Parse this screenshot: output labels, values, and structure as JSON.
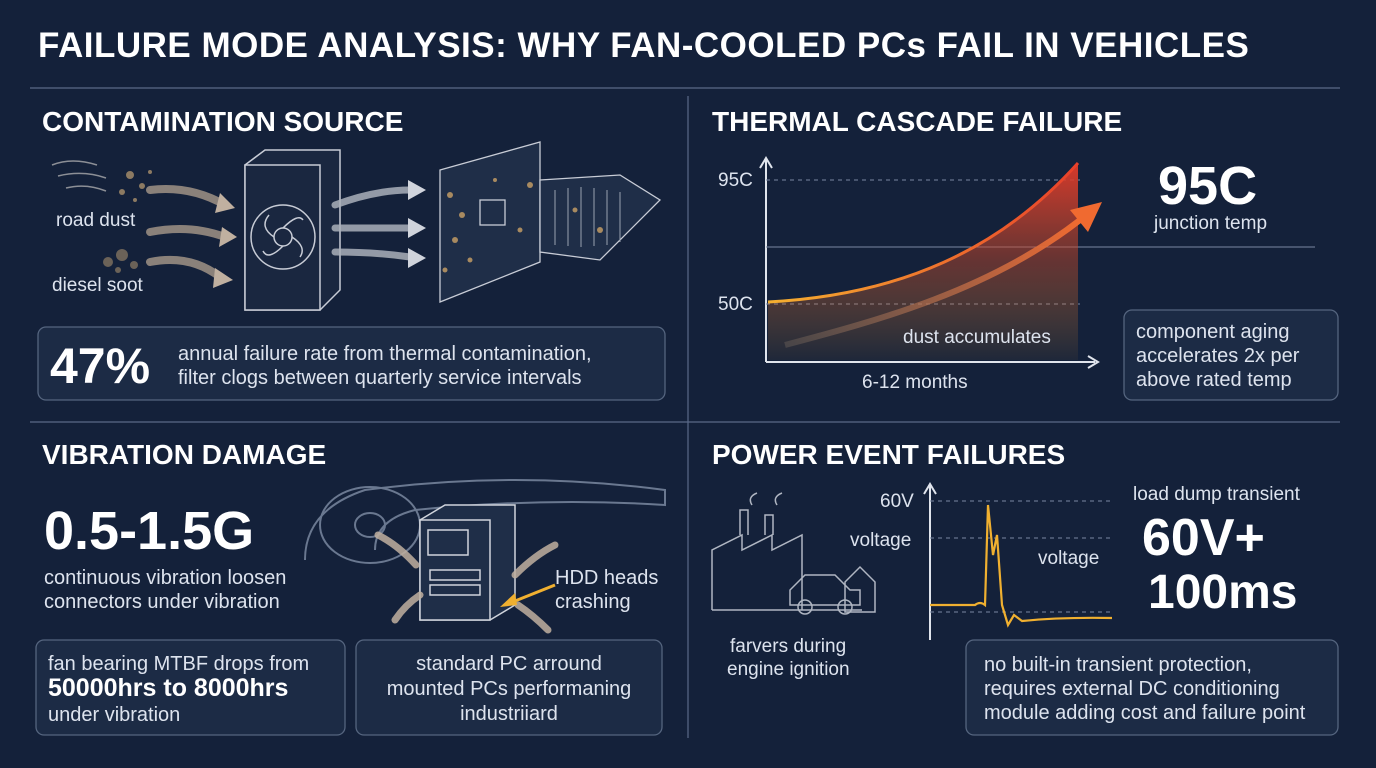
{
  "header": {
    "title": "FAILURE MODE ANALYSIS: WHY FAN-COOLED PCs FAIL IN VEHICLES"
  },
  "contamination": {
    "title": "CONTAMINATION SOURCE",
    "labels": [
      "road dust",
      "diesel soot"
    ],
    "stat": "47%",
    "stat_text": [
      "annual failure rate from thermal contamination,",
      "filter clogs between quarterly service intervals"
    ]
  },
  "thermal": {
    "title": "THERMAL CASCADE FAILURE",
    "axis_labels": [
      "95C",
      "50C"
    ],
    "x_label": "6-12 months",
    "curve_label": "dust accumulates",
    "stat": "95C",
    "stat_caption": "junction temp",
    "note": [
      "component aging",
      "accelerates 2x per",
      "above rated temp"
    ]
  },
  "vibration": {
    "title": "VIBRATION DAMAGE",
    "stat": "0.5-1.5G",
    "stat_text": [
      "continuous vibration loosen",
      "connectors under vibration"
    ],
    "callout": [
      "HDD heads",
      "crashing"
    ],
    "box1": [
      "fan bearing MTBF drops from",
      "50000hrs to 8000hrs",
      "under vibration"
    ],
    "box2": [
      "standard PC arround",
      "mounted PCs performaning",
      "industriiard"
    ]
  },
  "power": {
    "title": "POWER EVENT FAILURES",
    "axis_labels": [
      "60V",
      "voltage"
    ],
    "trace_label": "voltage",
    "scene_caption": [
      "farvers during",
      "engine ignition"
    ],
    "stat_caption": "load dump transient",
    "stat": [
      "60V+",
      "100ms"
    ],
    "note": [
      "no built-in transient protection,",
      "requires external DC conditioning",
      "module adding cost and failure point"
    ]
  }
}
